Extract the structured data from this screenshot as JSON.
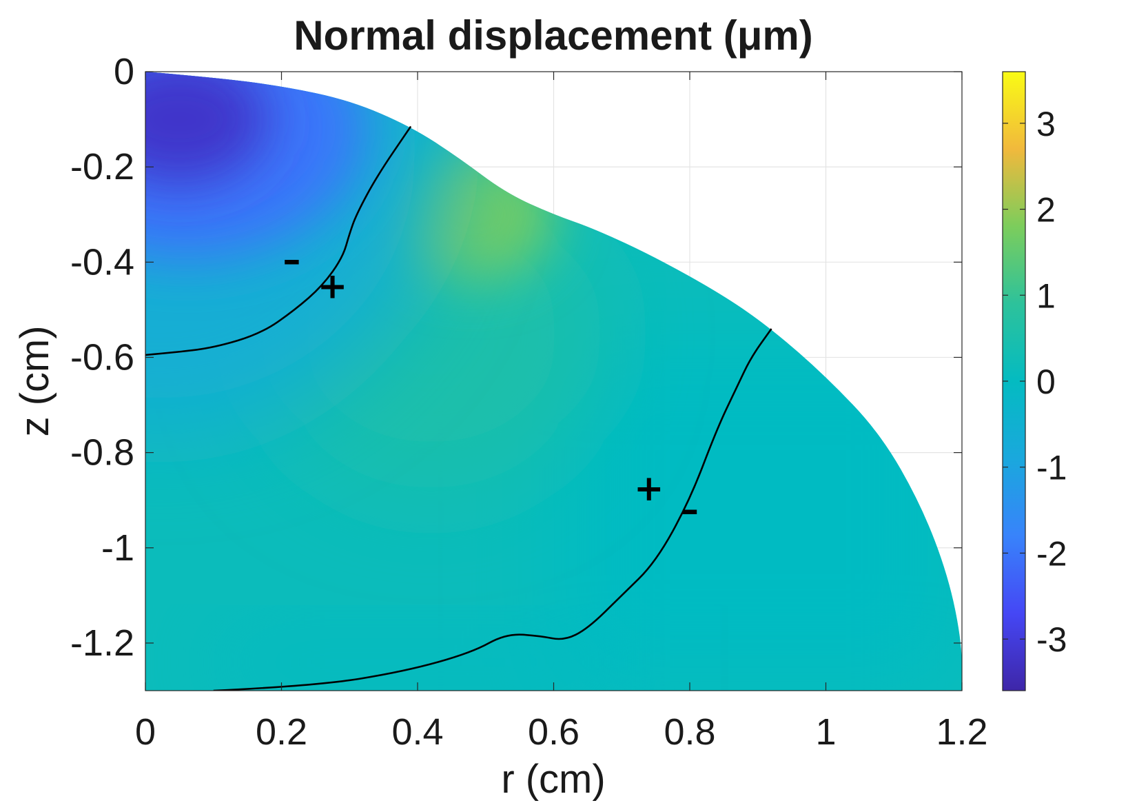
{
  "chart_data": {
    "type": "heatmap",
    "title": "Normal  displacement  (μm)",
    "xlabel": "r (cm)",
    "ylabel": "z (cm)",
    "xlim": [
      0,
      1.2
    ],
    "ylim": [
      -1.3,
      0
    ],
    "x_ticks": [
      0,
      0.2,
      0.4,
      0.6,
      0.8,
      1,
      1.2
    ],
    "x_tick_labels": [
      "0",
      "0.2",
      "0.4",
      "0.6",
      "0.8",
      "1",
      "1.2"
    ],
    "y_ticks": [
      0,
      -0.2,
      -0.4,
      -0.6,
      -0.8,
      -1,
      -1.2
    ],
    "y_tick_labels": [
      "0",
      "-0.2",
      "-0.4",
      "-0.6",
      "-0.8",
      "-1",
      "-1.2"
    ],
    "grid": true,
    "colorbar": {
      "limits": [
        -3.6,
        3.6
      ],
      "ticks": [
        3,
        2,
        1,
        0,
        -1,
        -2,
        -3
      ],
      "tick_labels": [
        "3",
        "2",
        "1",
        "0",
        "-1",
        "-2",
        "-3"
      ],
      "colormap": "parula"
    },
    "domain_boundary": [
      [
        0,
        0
      ],
      [
        0.1,
        -0.012
      ],
      [
        0.2,
        -0.03
      ],
      [
        0.3,
        -0.06
      ],
      [
        0.39,
        -0.115
      ],
      [
        0.46,
        -0.18
      ],
      [
        0.53,
        -0.255
      ],
      [
        0.6,
        -0.3
      ],
      [
        0.66,
        -0.33
      ],
      [
        0.75,
        -0.39
      ],
      [
        0.85,
        -0.47
      ],
      [
        0.92,
        -0.54
      ],
      [
        1.0,
        -0.64
      ],
      [
        1.08,
        -0.76
      ],
      [
        1.14,
        -0.91
      ],
      [
        1.18,
        -1.06
      ],
      [
        1.2,
        -1.2
      ],
      [
        1.2,
        -1.3
      ]
    ],
    "field_features": [
      {
        "label": "minimum",
        "r": 0.05,
        "z": -0.1,
        "value": -3.2
      },
      {
        "label": "maximum",
        "r": 0.48,
        "z": -0.29,
        "value": 1.7
      }
    ],
    "background_value": 0.15,
    "zero_contours": [
      [
        [
          0,
          -0.595
        ],
        [
          0.04,
          -0.59
        ],
        [
          0.1,
          -0.58
        ],
        [
          0.17,
          -0.55
        ],
        [
          0.22,
          -0.5
        ],
        [
          0.26,
          -0.45
        ],
        [
          0.29,
          -0.39
        ],
        [
          0.3,
          -0.34
        ],
        [
          0.31,
          -0.3
        ],
        [
          0.34,
          -0.22
        ],
        [
          0.39,
          -0.115
        ]
      ],
      [
        [
          0.1,
          -1.3
        ],
        [
          0.25,
          -1.29
        ],
        [
          0.38,
          -1.26
        ],
        [
          0.48,
          -1.22
        ],
        [
          0.53,
          -1.18
        ],
        [
          0.58,
          -1.185
        ],
        [
          0.615,
          -1.195
        ],
        [
          0.65,
          -1.17
        ],
        [
          0.7,
          -1.1
        ],
        [
          0.75,
          -1.03
        ],
        [
          0.8,
          -0.9
        ],
        [
          0.84,
          -0.75
        ],
        [
          0.87,
          -0.66
        ],
        [
          0.89,
          -0.6
        ],
        [
          0.92,
          -0.54
        ]
      ]
    ],
    "sign_annotations": [
      {
        "text": "–",
        "r": 0.215,
        "z": -0.4
      },
      {
        "text": "+",
        "r": 0.275,
        "z": -0.455
      },
      {
        "text": "+",
        "r": 0.74,
        "z": -0.88
      },
      {
        "text": "–",
        "r": 0.8,
        "z": -0.925
      }
    ]
  }
}
